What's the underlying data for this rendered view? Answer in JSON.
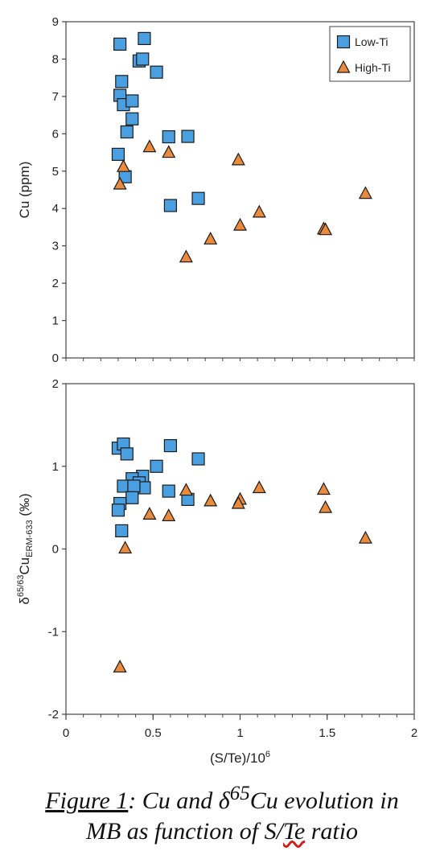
{
  "chart_data": [
    {
      "type": "scatter",
      "title": "",
      "xlabel": "",
      "ylabel": "Cu (ppm)",
      "xlim": [
        0,
        2
      ],
      "ylim": [
        0,
        9
      ],
      "yticks": [
        "0",
        "1",
        "2",
        "3",
        "4",
        "5",
        "6",
        "7",
        "8",
        "9"
      ],
      "legend": {
        "position": "top-right",
        "entries": [
          "Low-Ti",
          "High-Ti"
        ]
      },
      "grid": false,
      "series": [
        {
          "name": "Low-Ti",
          "marker": "square",
          "color": "#4a9fe0",
          "points": [
            [
              0.31,
              8.4
            ],
            [
              0.45,
              8.55
            ],
            [
              0.42,
              7.95
            ],
            [
              0.44,
              8.0
            ],
            [
              0.52,
              7.65
            ],
            [
              0.32,
              7.4
            ],
            [
              0.31,
              7.03
            ],
            [
              0.33,
              6.78
            ],
            [
              0.38,
              6.88
            ],
            [
              0.38,
              6.4
            ],
            [
              0.35,
              6.05
            ],
            [
              0.59,
              5.92
            ],
            [
              0.7,
              5.93
            ],
            [
              0.3,
              5.45
            ],
            [
              0.34,
              4.85
            ],
            [
              0.76,
              4.27
            ],
            [
              0.6,
              4.08
            ]
          ]
        },
        {
          "name": "High-Ti",
          "marker": "triangle",
          "color": "#e98a3c",
          "points": [
            [
              0.48,
              5.65
            ],
            [
              0.59,
              5.5
            ],
            [
              0.99,
              5.3
            ],
            [
              0.33,
              5.12
            ],
            [
              0.31,
              4.65
            ],
            [
              1.72,
              4.4
            ],
            [
              1.11,
              3.9
            ],
            [
              1.0,
              3.55
            ],
            [
              1.48,
              3.45
            ],
            [
              1.49,
              3.43
            ],
            [
              0.83,
              3.18
            ],
            [
              0.69,
              2.7
            ]
          ]
        }
      ]
    },
    {
      "type": "scatter",
      "title": "",
      "xlabel": "(S/Te)/10",
      "xlabel_sup": "6",
      "ylabel_parts": {
        "delta": "δ",
        "sup": "65/63",
        "base": "Cu",
        "sub": "ERM-633",
        "unit": " (‰)"
      },
      "xlim": [
        0,
        2
      ],
      "ylim": [
        -2,
        2
      ],
      "xticks": [
        "0",
        "0.5",
        "1",
        "1.5",
        "2"
      ],
      "yticks": [
        "-2",
        "-1",
        "0",
        "1",
        "2"
      ],
      "grid": false,
      "series": [
        {
          "name": "Low-Ti",
          "marker": "square",
          "color": "#4a9fe0",
          "points": [
            [
              0.3,
              1.22
            ],
            [
              0.33,
              1.27
            ],
            [
              0.35,
              1.15
            ],
            [
              0.6,
              1.25
            ],
            [
              0.76,
              1.09
            ],
            [
              0.52,
              1.0
            ],
            [
              0.44,
              0.88
            ],
            [
              0.38,
              0.85
            ],
            [
              0.42,
              0.8
            ],
            [
              0.33,
              0.76
            ],
            [
              0.45,
              0.74
            ],
            [
              0.39,
              0.76
            ],
            [
              0.59,
              0.7
            ],
            [
              0.38,
              0.62
            ],
            [
              0.7,
              0.6
            ],
            [
              0.31,
              0.55
            ],
            [
              0.3,
              0.47
            ],
            [
              0.32,
              0.22
            ]
          ]
        },
        {
          "name": "High-Ti",
          "marker": "triangle",
          "color": "#e98a3c",
          "points": [
            [
              1.11,
              0.74
            ],
            [
              1.48,
              0.72
            ],
            [
              0.69,
              0.71
            ],
            [
              1.0,
              0.6
            ],
            [
              0.83,
              0.58
            ],
            [
              0.99,
              0.55
            ],
            [
              1.49,
              0.5
            ],
            [
              0.48,
              0.42
            ],
            [
              0.59,
              0.4
            ],
            [
              1.72,
              0.13
            ],
            [
              0.34,
              0.01
            ],
            [
              0.31,
              -1.43
            ]
          ]
        }
      ]
    }
  ],
  "caption": {
    "label": "Figure 1",
    "line1_rest": ": Cu and δ",
    "line1_sup": "65",
    "line1_end": "Cu evolution in",
    "line2_start": "MB as function of S/",
    "line2_te": "Te",
    "line2_end": " ratio"
  }
}
